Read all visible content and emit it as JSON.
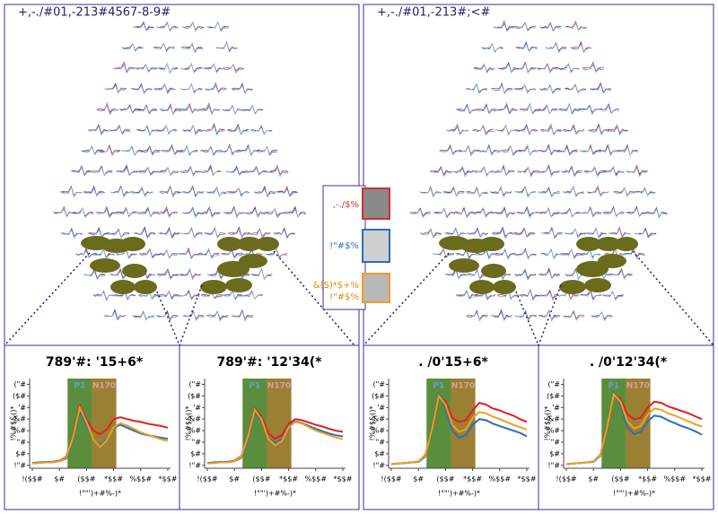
{
  "panels": [
    {
      "title": "+,-./#01,-213#4567-8-9#"
    },
    {
      "title": "+,-./#01,-213#;<#"
    }
  ],
  "legend": [
    {
      "label": ",-./$%",
      "color": "#d03030"
    },
    {
      "label": "!\"#$%",
      "color": "#2a6fb8"
    },
    {
      "label": "&(S)*$+%",
      "label2": "!\"#$%",
      "color": "#f0a020"
    }
  ],
  "axes": {
    "x": [
      -100,
      -75,
      -50,
      -25,
      0,
      25,
      50,
      75,
      100,
      125,
      150,
      175,
      200,
      225,
      250,
      275,
      300,
      325,
      350,
      375,
      400
    ],
    "xlim": [
      -110,
      410
    ],
    "ylim": [
      -2.5,
      13
    ],
    "xticks": [
      {
        "value": -100,
        "label": "!($$#"
      },
      {
        "value": 0,
        "label": "$#"
      },
      {
        "value": 100,
        "label": "($$#"
      },
      {
        "value": 200,
        "label": "*$$#"
      },
      {
        "value": 300,
        "label": "%$$#"
      },
      {
        "value": 400,
        "label": "*$$#"
      }
    ],
    "yticks": [
      {
        "value": -2,
        "label": "!\"#"
      },
      {
        "value": 0,
        "label": "$#"
      },
      {
        "value": 2,
        "label": "\"#"
      },
      {
        "value": 4,
        "label": "%#"
      },
      {
        "value": 6,
        "label": "&#"
      },
      {
        "value": 8,
        "label": "'#"
      },
      {
        "value": 10,
        "label": "($#"
      },
      {
        "value": 12,
        "label": "(\"#"
      }
    ],
    "xlabel": "!\"\"')+#%-)*",
    "ylabel": "!%#$&()*",
    "regions": [
      {
        "label": "P1",
        "start": 30,
        "end": 120,
        "color": "#3d7a1a"
      },
      {
        "label": "N170",
        "start": 120,
        "end": 210,
        "color": "#8a6a10"
      }
    ]
  },
  "charts": [
    {
      "title": "789'#: '15+6*",
      "series": [
        {
          "color": "#e02020",
          "values": [
            -1.6,
            -1.5,
            -1.5,
            -1.4,
            -1.2,
            -0.5,
            3,
            8.3,
            6,
            4,
            3.4,
            4.2,
            6,
            6.3,
            6,
            5.7,
            5.5,
            5.2,
            5,
            4.8,
            4.5
          ]
        },
        {
          "color": "#2a6fb8",
          "values": [
            -1.6,
            -1.5,
            -1.4,
            -1.4,
            -1.3,
            -0.8,
            2.5,
            7.5,
            5,
            2.5,
            1.5,
            2.5,
            4.5,
            5,
            4.5,
            4,
            3.5,
            3.2,
            3,
            2.8,
            2.6
          ]
        },
        {
          "color": "#f0a020",
          "values": [
            -1.7,
            -1.6,
            -1.5,
            -1.5,
            -1.3,
            -0.6,
            2.8,
            8,
            5.5,
            2.5,
            1.2,
            2.3,
            4.6,
            5.3,
            4.9,
            4.3,
            3.7,
            3.3,
            2.9,
            2.5,
            2.2
          ]
        }
      ]
    },
    {
      "title": "789'#: '12'34(*",
      "series": [
        {
          "color": "#e02020",
          "values": [
            -1.6,
            -1.5,
            -1.5,
            -1.4,
            -1.2,
            -0.4,
            3.2,
            7.8,
            6.5,
            3.5,
            2.6,
            3.2,
            5.2,
            6,
            5.8,
            5.4,
            5,
            4.7,
            4.3,
            4,
            3.8
          ]
        },
        {
          "color": "#2a6fb8",
          "values": [
            -1.6,
            -1.5,
            -1.4,
            -1.4,
            -1.3,
            -0.7,
            2.8,
            7.2,
            5.8,
            2.8,
            1.8,
            2.5,
            4.8,
            5.6,
            5.3,
            4.8,
            4.3,
            3.9,
            3.5,
            3.2,
            3
          ]
        },
        {
          "color": "#f0a020",
          "values": [
            -1.7,
            -1.6,
            -1.5,
            -1.5,
            -1.3,
            -0.5,
            3,
            7.6,
            6,
            2.6,
            1.5,
            2.2,
            4.6,
            5.5,
            5.2,
            4.6,
            4,
            3.6,
            3.2,
            2.8,
            2.5
          ]
        }
      ]
    },
    {
      "title": ". /0'15+6*",
      "series": [
        {
          "color": "#e02020",
          "values": [
            -1.8,
            -1.7,
            -1.6,
            -1.5,
            -1.3,
            -0.2,
            4,
            9.8,
            9,
            6.2,
            5.5,
            5.8,
            7.5,
            8.8,
            8.5,
            7.8,
            7.5,
            7,
            6.6,
            6,
            5.5
          ]
        },
        {
          "color": "#2a6fb8",
          "values": [
            -1.8,
            -1.7,
            -1.6,
            -1.5,
            -1.4,
            -0.5,
            4.5,
            10.3,
            8,
            4,
            2.8,
            3.2,
            5,
            6,
            5.8,
            5.2,
            4.8,
            4.4,
            4,
            3.6,
            3
          ]
        },
        {
          "color": "#f0a020",
          "values": [
            -1.8,
            -1.7,
            -1.6,
            -1.5,
            -1.3,
            -0.3,
            4.2,
            10,
            8.5,
            5,
            3.8,
            4.2,
            6.2,
            7.2,
            7,
            6.4,
            6,
            5.5,
            5,
            4.6,
            4.2
          ]
        }
      ]
    },
    {
      "title": ". /0'12'34(*",
      "series": [
        {
          "color": "#e02020",
          "values": [
            -1.8,
            -1.7,
            -1.6,
            -1.5,
            -1.3,
            -0.2,
            4.2,
            10.2,
            9.5,
            6.8,
            6,
            6.2,
            8,
            9,
            8.8,
            8.2,
            7.8,
            7.4,
            7,
            6.5,
            6
          ]
        },
        {
          "color": "#2a6fb8",
          "values": [
            -1.8,
            -1.7,
            -1.6,
            -1.5,
            -1.4,
            -0.4,
            4.8,
            10.6,
            8.6,
            4.6,
            3.4,
            3.8,
            5.6,
            6.6,
            6.4,
            5.8,
            5.3,
            4.8,
            4.4,
            3.9,
            3.3
          ]
        },
        {
          "color": "#f0a020",
          "values": [
            -1.8,
            -1.7,
            -1.6,
            -1.5,
            -1.3,
            -0.3,
            4.5,
            10.3,
            9,
            5.6,
            4.4,
            4.8,
            6.8,
            7.8,
            7.6,
            7,
            6.6,
            6.1,
            5.6,
            5.1,
            4.7
          ]
        }
      ]
    }
  ]
}
